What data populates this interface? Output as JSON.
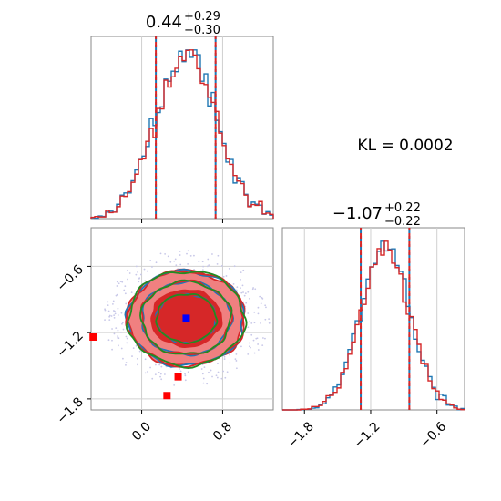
{
  "chart_data": {
    "type": "corner",
    "colors": {
      "series_a": "#1f77b4",
      "series_b": "#d62728",
      "contour_reference": "#228B22",
      "fill_strong": "#d62728",
      "fill_light": "#f08080",
      "truth_marker": "#0000ff",
      "extra_marker": "#ff0000",
      "grid": "#d0d0d0"
    },
    "annotation": "KL = 0.0002",
    "param1": {
      "title_main": "0.44",
      "title_sup": "+0.29",
      "title_sub": "−0.30",
      "median": 0.44,
      "lower": 0.14,
      "upper": 0.73,
      "xlim": [
        -0.5,
        1.3
      ],
      "ticks": [
        0.0,
        0.8
      ],
      "tick_labels": [
        "0.0",
        "0.8"
      ]
    },
    "param2": {
      "title_main": "−1.07",
      "title_sup": "+0.22",
      "title_sub": "−0.22",
      "median": -1.07,
      "lower": -1.29,
      "upper": -0.85,
      "xlim": [
        -2.0,
        -0.35
      ],
      "ticks": [
        -1.8,
        -1.2,
        -0.6
      ],
      "tick_labels": [
        "−1.8",
        "−1.2",
        "−0.6"
      ]
    },
    "joint": {
      "yticks": [
        -0.6,
        -1.2,
        -1.8
      ],
      "ytick_labels": [
        "−0.6",
        "−1.2",
        "−1.8"
      ],
      "ylim": [
        -1.9,
        -0.25
      ],
      "truth_point": {
        "x": 0.44,
        "y": -1.07
      },
      "extra_points": [
        {
          "x": -0.48,
          "y": -1.24
        },
        {
          "x": 0.36,
          "y": -1.6
        },
        {
          "x": 0.25,
          "y": -1.77
        }
      ]
    }
  }
}
